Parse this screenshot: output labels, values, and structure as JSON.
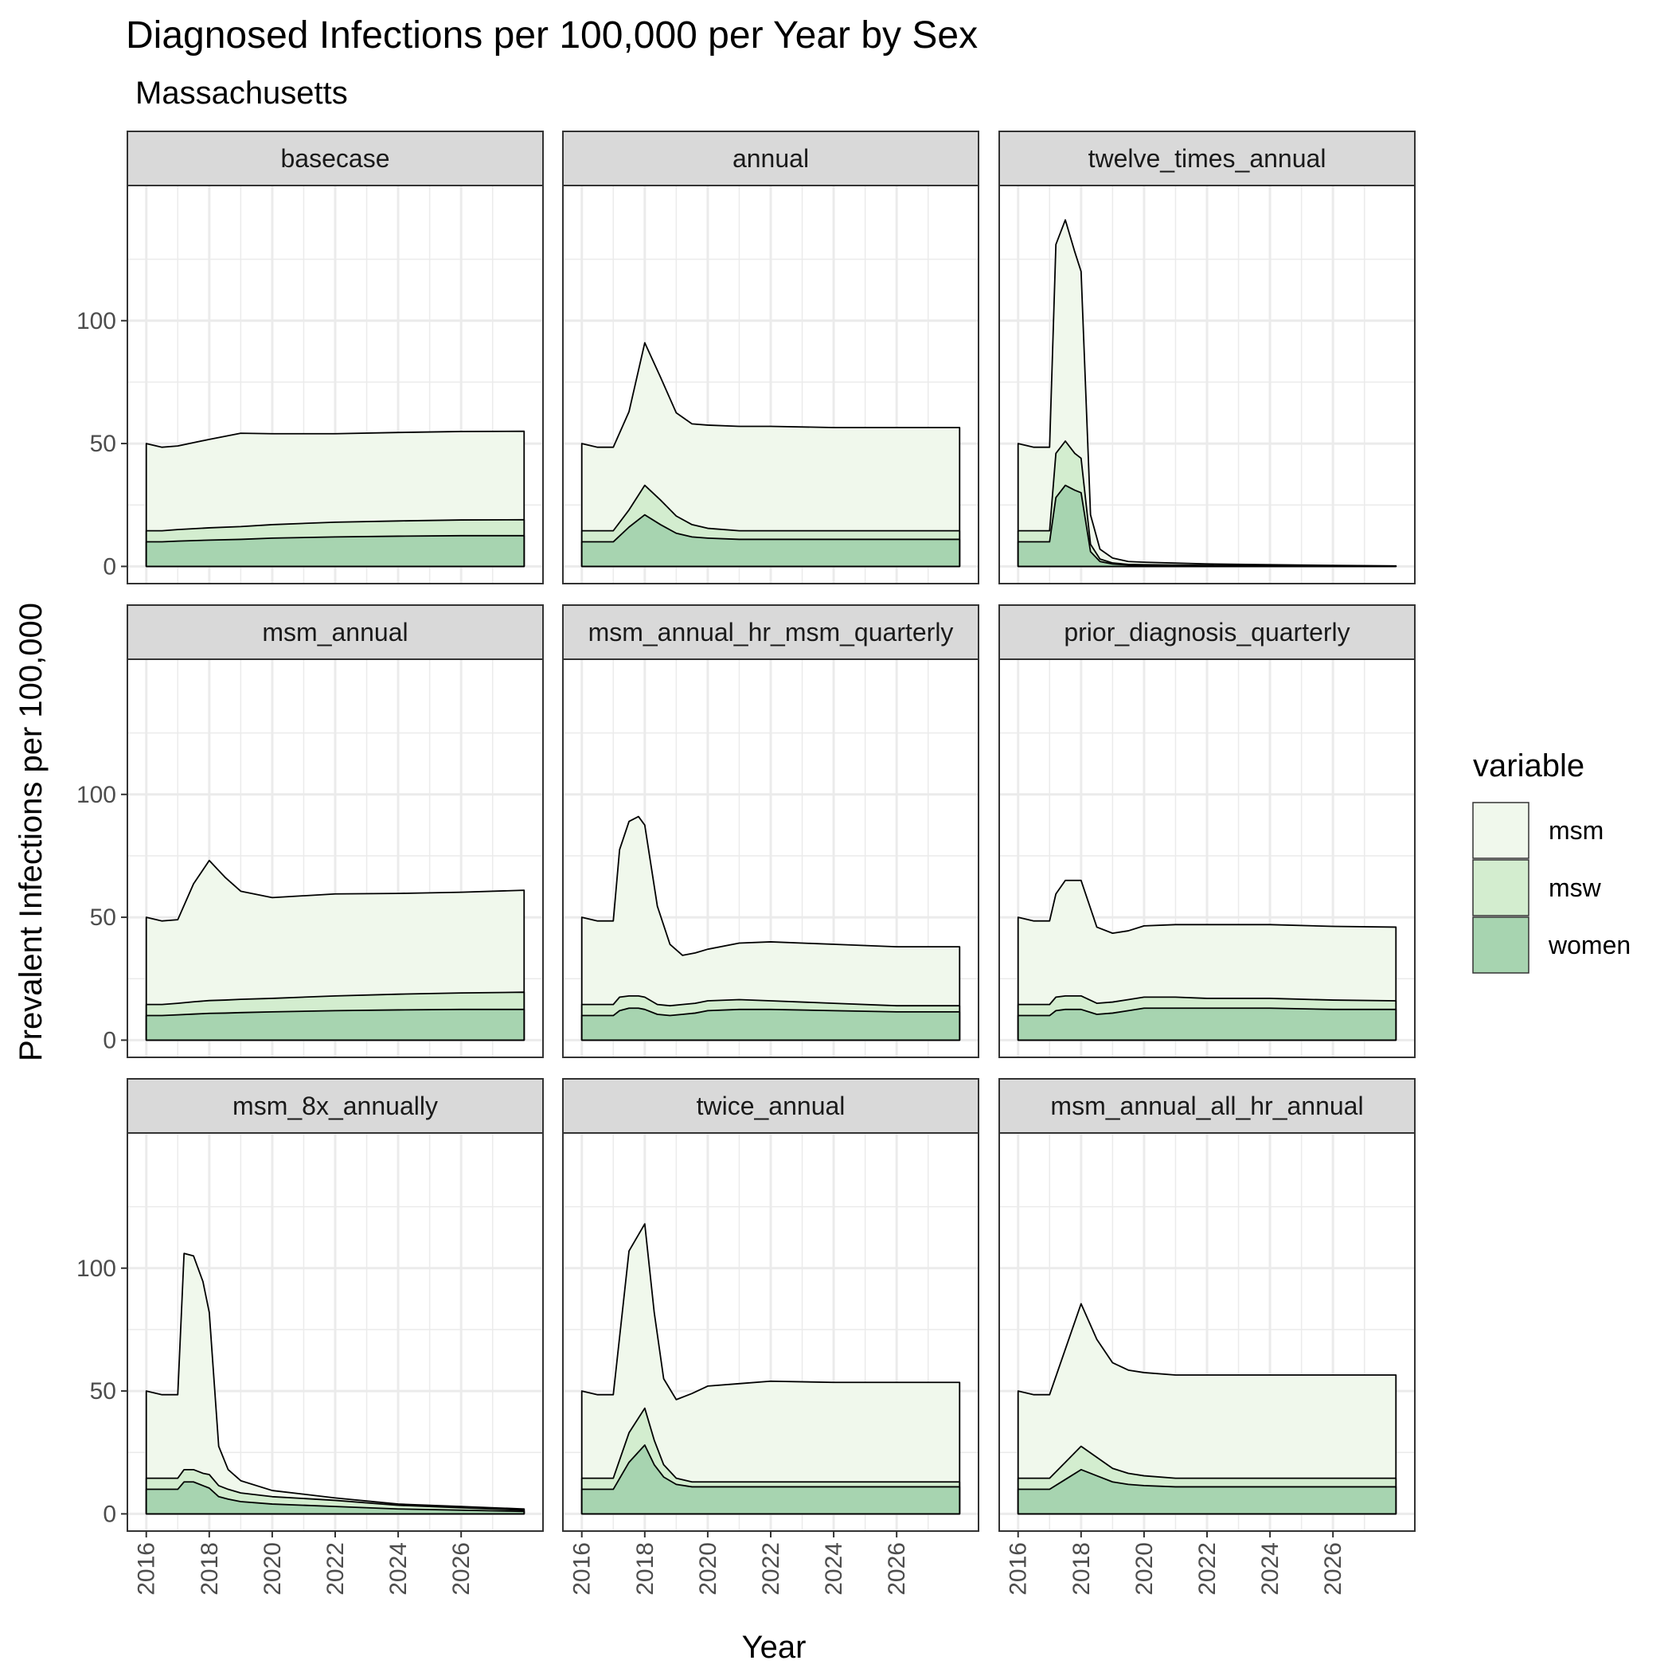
{
  "chart_data": {
    "type": "area",
    "stacked": true,
    "title": "Diagnosed Infections per 100,000 per Year by Sex",
    "subtitle": "Massachusetts",
    "xlabel": "Year",
    "ylabel": "Prevalent Infections per 100,000",
    "xlim": [
      2015.4,
      2028.6
    ],
    "ylim": [
      -7,
      155
    ],
    "x_ticks": [
      2016,
      2018,
      2020,
      2022,
      2024,
      2026
    ],
    "y_ticks": [
      0,
      50,
      100
    ],
    "grid": true,
    "legend": {
      "title": "variable",
      "position": "right",
      "entries": [
        {
          "name": "msm",
          "color": "#f0f8ec"
        },
        {
          "name": "msw",
          "color": "#d3edcf"
        },
        {
          "name": "women",
          "color": "#a7d4b0"
        }
      ]
    },
    "colors": {
      "msm": "#f0f8ec",
      "msw": "#d3edcf",
      "women": "#a7d4b0",
      "strip": "#d9d9d9",
      "grid": "#ebebeb"
    },
    "series_order": [
      "women",
      "msw",
      "msm"
    ],
    "facets": [
      {
        "name": "basecase",
        "x": [
          2016,
          2016.5,
          2017,
          2018,
          2019,
          2020,
          2022,
          2024,
          2026,
          2028
        ],
        "women": [
          10,
          10,
          10.3,
          10.7,
          11,
          11.5,
          12,
          12.3,
          12.5,
          12.5
        ],
        "msw": [
          4.5,
          4.5,
          4.7,
          5,
          5.2,
          5.5,
          6,
          6.2,
          6.4,
          6.5
        ],
        "msm": [
          35.5,
          34,
          34,
          36,
          38,
          37,
          36,
          36,
          36,
          36
        ]
      },
      {
        "name": "annual",
        "x": [
          2016,
          2016.5,
          2017,
          2017.5,
          2018,
          2018.5,
          2019,
          2019.5,
          2020,
          2021,
          2022,
          2024,
          2026,
          2028
        ],
        "women": [
          10,
          10,
          10,
          16,
          21,
          17,
          13.5,
          12,
          11.5,
          11,
          11,
          11,
          11,
          11
        ],
        "msw": [
          4.5,
          4.5,
          4.5,
          7,
          12,
          10,
          7,
          5,
          4,
          3.5,
          3.5,
          3.5,
          3.5,
          3.5
        ],
        "msm": [
          35.5,
          34,
          34,
          40,
          58,
          50,
          42,
          41,
          42,
          42.5,
          42.5,
          42,
          42,
          42
        ]
      },
      {
        "name": "twelve_times_annual",
        "x": [
          2016,
          2016.5,
          2017,
          2017.2,
          2017.5,
          2017.8,
          2018,
          2018.3,
          2018.6,
          2019,
          2019.5,
          2020,
          2022,
          2024,
          2026,
          2028
        ],
        "women": [
          10,
          10,
          10,
          28,
          33,
          31,
          30,
          6,
          2,
          1,
          0.6,
          0.5,
          0.3,
          0.2,
          0.1,
          0.1
        ],
        "msw": [
          4.5,
          4.5,
          4.5,
          18,
          18,
          15,
          14,
          3,
          1,
          0.4,
          0.2,
          0.2,
          0.1,
          0.1,
          0.1,
          0
        ],
        "msm": [
          35.5,
          34,
          34,
          85,
          90,
          82,
          76,
          12,
          4,
          2,
          1.2,
          1,
          0.6,
          0.4,
          0.2,
          0.1
        ]
      },
      {
        "name": "msm_annual",
        "x": [
          2016,
          2016.5,
          2017,
          2017.5,
          2018,
          2018.5,
          2019,
          2020,
          2022,
          2024,
          2026,
          2028
        ],
        "women": [
          10,
          10,
          10.3,
          10.6,
          10.9,
          11,
          11.2,
          11.5,
          12,
          12.3,
          12.5,
          12.5
        ],
        "msw": [
          4.5,
          4.5,
          4.7,
          5,
          5.2,
          5.3,
          5.4,
          5.5,
          6,
          6.4,
          6.7,
          7
        ],
        "msm": [
          35.5,
          34,
          34,
          48,
          57,
          50,
          44,
          41,
          41.5,
          41,
          41,
          41.5
        ]
      },
      {
        "name": "msm_annual_hr_msm_quarterly",
        "x": [
          2016,
          2016.5,
          2017,
          2017.2,
          2017.5,
          2017.8,
          2018,
          2018.4,
          2018.8,
          2019.2,
          2019.6,
          2020,
          2021,
          2022,
          2024,
          2026,
          2028
        ],
        "women": [
          10,
          10,
          10,
          12,
          13,
          13,
          12.5,
          10.5,
          10,
          10.5,
          11,
          12,
          12.5,
          12.5,
          12,
          11.5,
          11.5
        ],
        "msw": [
          4.5,
          4.5,
          4.5,
          5.5,
          5,
          5,
          5,
          4,
          4,
          4,
          4,
          4,
          4,
          3.5,
          3,
          2.5,
          2.5
        ],
        "msm": [
          35.5,
          34,
          34,
          60,
          71,
          73,
          70,
          40,
          25,
          20,
          20.5,
          21,
          23,
          24,
          24,
          24,
          24
        ]
      },
      {
        "name": "prior_diagnosis_quarterly",
        "x": [
          2016,
          2016.5,
          2017,
          2017.2,
          2017.5,
          2017.8,
          2018,
          2018.5,
          2019,
          2019.5,
          2020,
          2021,
          2022,
          2024,
          2026,
          2028
        ],
        "women": [
          10,
          10,
          10,
          12,
          12.5,
          12.5,
          12.5,
          10.5,
          11,
          12,
          13,
          13,
          13,
          13,
          12.5,
          12.5
        ],
        "msw": [
          4.5,
          4.5,
          4.5,
          5.5,
          5.5,
          5.5,
          5.5,
          4.5,
          4.5,
          4.5,
          4.5,
          4.5,
          4,
          4,
          3.8,
          3.5
        ],
        "msm": [
          35.5,
          34,
          34,
          42,
          47,
          47,
          47,
          31,
          28,
          28,
          29,
          29.5,
          30,
          30,
          30,
          30
        ]
      },
      {
        "name": "msm_8x_annually",
        "x": [
          2016,
          2016.5,
          2017,
          2017.2,
          2017.5,
          2017.8,
          2018,
          2018.3,
          2018.6,
          2019,
          2020,
          2022,
          2024,
          2026,
          2028
        ],
        "women": [
          10,
          10,
          10,
          13,
          13,
          11.5,
          10.5,
          7,
          6,
          5,
          4,
          3,
          2,
          1.5,
          1
        ],
        "msw": [
          4.5,
          4.5,
          4.5,
          5,
          5,
          5,
          5.5,
          4.5,
          4,
          3.5,
          3,
          2.5,
          1.5,
          1,
          0.5
        ],
        "msm": [
          35.5,
          34,
          34,
          88,
          87,
          78,
          66,
          16,
          8,
          5,
          2.5,
          1,
          0.5,
          0.5,
          0.5
        ]
      },
      {
        "name": "twice_annual",
        "x": [
          2016,
          2016.5,
          2017,
          2017.5,
          2018,
          2018.3,
          2018.6,
          2019,
          2019.5,
          2020,
          2021,
          2022,
          2024,
          2026,
          2028
        ],
        "women": [
          10,
          10,
          10,
          21,
          28,
          20,
          15,
          12,
          11,
          11,
          11,
          11,
          11,
          11,
          11
        ],
        "msw": [
          4.5,
          4.5,
          4.5,
          12,
          15,
          10,
          5,
          2.5,
          2,
          2,
          2,
          2,
          2,
          2,
          2
        ],
        "msm": [
          35.5,
          34,
          34,
          74,
          75,
          52,
          35,
          32,
          36,
          39,
          40,
          41,
          40.5,
          40.5,
          40.5
        ]
      },
      {
        "name": "msm_annual_all_hr_annual",
        "x": [
          2016,
          2016.5,
          2017,
          2017.5,
          2018,
          2018.5,
          2019,
          2019.5,
          2020,
          2021,
          2022,
          2024,
          2026,
          2028
        ],
        "women": [
          10,
          10,
          10,
          14,
          18,
          15.5,
          13,
          12,
          11.5,
          11,
          11,
          11,
          11,
          11
        ],
        "msw": [
          4.5,
          4.5,
          4.5,
          7,
          9.5,
          7.5,
          5.5,
          4.5,
          4,
          3.5,
          3.5,
          3.5,
          3.5,
          3.5
        ],
        "msm": [
          35.5,
          34,
          34,
          46,
          58,
          48,
          43,
          42,
          42,
          42,
          42,
          42,
          42,
          42
        ]
      }
    ]
  }
}
